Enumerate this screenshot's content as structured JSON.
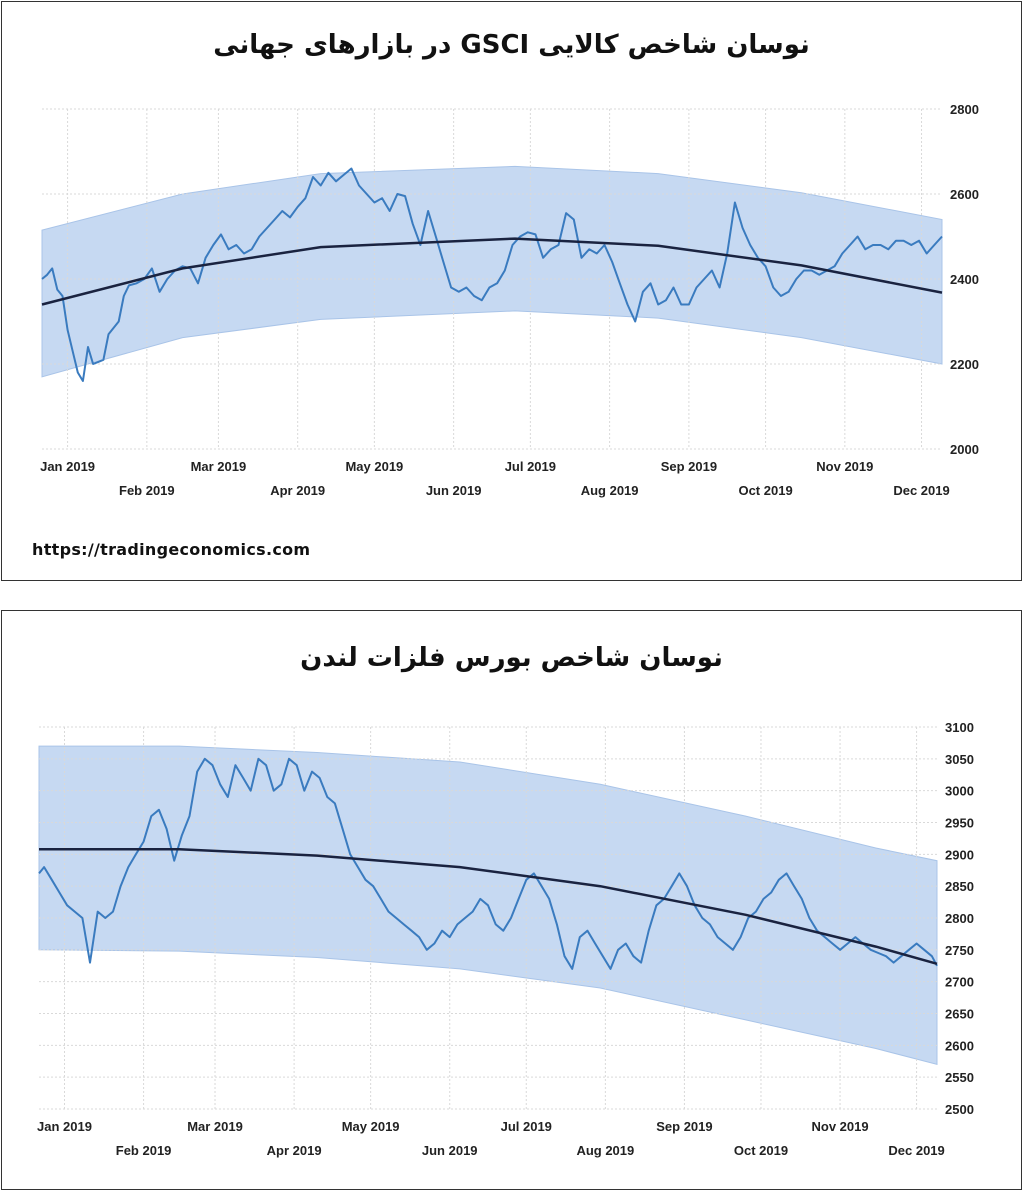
{
  "source": "https://tradingeconomics.com",
  "colors": {
    "band": "#c6d9f2",
    "line": "#3a7bbf",
    "trend": "#1a2340",
    "grid": "#d9d9d9"
  },
  "chart_data": [
    {
      "type": "line",
      "title": "نوسان شاخص کالایی GSCI  در بازارهای جهانی",
      "ylim": [
        2000,
        2800
      ],
      "yticks": [
        2000,
        2200,
        2400,
        2600,
        2800
      ],
      "xlim": [
        "2018-12-22",
        "2019-12-09"
      ],
      "month_ticks": [
        {
          "label": "Jan 2019",
          "date": "2019-01-01",
          "row": 1
        },
        {
          "label": "Feb 2019",
          "date": "2019-02-01",
          "row": 2
        },
        {
          "label": "Mar 2019",
          "date": "2019-03-01",
          "row": 1
        },
        {
          "label": "Apr 2019",
          "date": "2019-04-01",
          "row": 2
        },
        {
          "label": "May 2019",
          "date": "2019-05-01",
          "row": 1
        },
        {
          "label": "Jun 2019",
          "date": "2019-06-01",
          "row": 2
        },
        {
          "label": "Jul 2019",
          "date": "2019-07-01",
          "row": 1
        },
        {
          "label": "Aug 2019",
          "date": "2019-08-01",
          "row": 2
        },
        {
          "label": "Sep 2019",
          "date": "2019-09-01",
          "row": 1
        },
        {
          "label": "Oct 2019",
          "date": "2019-10-01",
          "row": 2
        },
        {
          "label": "Nov 2019",
          "date": "2019-11-01",
          "row": 1
        },
        {
          "label": "Dec 2019",
          "date": "2019-12-01",
          "row": 2
        }
      ],
      "trend": {
        "x": [
          "2018-12-22",
          "2019-02-15",
          "2019-04-10",
          "2019-06-25",
          "2019-08-20",
          "2019-10-15",
          "2019-12-09"
        ],
        "y": [
          2340,
          2425,
          2475,
          2495,
          2478,
          2432,
          2368
        ]
      },
      "band": {
        "x": [
          "2018-12-22",
          "2019-02-15",
          "2019-04-10",
          "2019-06-25",
          "2019-08-20",
          "2019-10-15",
          "2019-12-09"
        ],
        "upper": [
          2515,
          2600,
          2648,
          2665,
          2648,
          2603,
          2540
        ],
        "lower": [
          2170,
          2262,
          2305,
          2325,
          2308,
          2262,
          2200
        ]
      },
      "series": [
        {
          "x": [
            "2018-12-22",
            "2018-12-24",
            "2018-12-26",
            "2018-12-28",
            "2018-12-30",
            "2019-01-01",
            "2019-01-03",
            "2019-01-05",
            "2019-01-07",
            "2019-01-09",
            "2019-01-11",
            "2019-01-13",
            "2019-01-15",
            "2019-01-17",
            "2019-01-19",
            "2019-01-21",
            "2019-01-23",
            "2019-01-25",
            "2019-01-28",
            "2019-01-31",
            "2019-02-03",
            "2019-02-06",
            "2019-02-09",
            "2019-02-12",
            "2019-02-15",
            "2019-02-18",
            "2019-02-21",
            "2019-02-24",
            "2019-02-27",
            "2019-03-02",
            "2019-03-05",
            "2019-03-08",
            "2019-03-11",
            "2019-03-14",
            "2019-03-17",
            "2019-03-20",
            "2019-03-23",
            "2019-03-26",
            "2019-03-29",
            "2019-04-01",
            "2019-04-04",
            "2019-04-07",
            "2019-04-10",
            "2019-04-13",
            "2019-04-16",
            "2019-04-19",
            "2019-04-22",
            "2019-04-25",
            "2019-04-28",
            "2019-05-01",
            "2019-05-04",
            "2019-05-07",
            "2019-05-10",
            "2019-05-13",
            "2019-05-16",
            "2019-05-19",
            "2019-05-22",
            "2019-05-25",
            "2019-05-28",
            "2019-05-31",
            "2019-06-03",
            "2019-06-06",
            "2019-06-09",
            "2019-06-12",
            "2019-06-15",
            "2019-06-18",
            "2019-06-21",
            "2019-06-24",
            "2019-06-27",
            "2019-06-30",
            "2019-07-03",
            "2019-07-06",
            "2019-07-09",
            "2019-07-12",
            "2019-07-15",
            "2019-07-18",
            "2019-07-21",
            "2019-07-24",
            "2019-07-27",
            "2019-07-30",
            "2019-08-02",
            "2019-08-05",
            "2019-08-08",
            "2019-08-11",
            "2019-08-14",
            "2019-08-17",
            "2019-08-20",
            "2019-08-23",
            "2019-08-26",
            "2019-08-29",
            "2019-09-01",
            "2019-09-04",
            "2019-09-07",
            "2019-09-10",
            "2019-09-13",
            "2019-09-16",
            "2019-09-19",
            "2019-09-22",
            "2019-09-25",
            "2019-09-28",
            "2019-10-01",
            "2019-10-04",
            "2019-10-07",
            "2019-10-10",
            "2019-10-13",
            "2019-10-16",
            "2019-10-19",
            "2019-10-22",
            "2019-10-25",
            "2019-10-28",
            "2019-10-31",
            "2019-11-03",
            "2019-11-06",
            "2019-11-09",
            "2019-11-12",
            "2019-11-15",
            "2019-11-18",
            "2019-11-21",
            "2019-11-24",
            "2019-11-27",
            "2019-11-30",
            "2019-12-03",
            "2019-12-06",
            "2019-12-09"
          ],
          "values": [
            2400,
            2410,
            2425,
            2375,
            2360,
            2280,
            2230,
            2180,
            2160,
            2240,
            2200,
            2205,
            2210,
            2270,
            2285,
            2300,
            2360,
            2385,
            2390,
            2400,
            2425,
            2370,
            2400,
            2420,
            2430,
            2425,
            2390,
            2450,
            2480,
            2505,
            2470,
            2480,
            2460,
            2470,
            2500,
            2520,
            2540,
            2560,
            2545,
            2570,
            2590,
            2640,
            2620,
            2650,
            2630,
            2645,
            2660,
            2620,
            2600,
            2580,
            2590,
            2560,
            2600,
            2595,
            2530,
            2480,
            2560,
            2500,
            2440,
            2380,
            2370,
            2380,
            2360,
            2350,
            2380,
            2390,
            2420,
            2480,
            2500,
            2510,
            2505,
            2450,
            2470,
            2480,
            2555,
            2540,
            2450,
            2470,
            2460,
            2480,
            2440,
            2390,
            2340,
            2300,
            2370,
            2390,
            2340,
            2350,
            2380,
            2340,
            2340,
            2380,
            2400,
            2420,
            2380,
            2460,
            2580,
            2520,
            2480,
            2450,
            2430,
            2380,
            2360,
            2370,
            2400,
            2420,
            2420,
            2410,
            2420,
            2430,
            2460,
            2480,
            2500,
            2470,
            2480,
            2480,
            2470,
            2490,
            2490,
            2480,
            2490,
            2460,
            2480,
            2500
          ]
        }
      ]
    },
    {
      "type": "line",
      "title": "نوسان شاخص بورس فلزات لندن",
      "ylim": [
        2500,
        3100
      ],
      "yticks": [
        2500,
        2550,
        2600,
        2650,
        2700,
        2750,
        2800,
        2850,
        2900,
        2950,
        3000,
        3050,
        3100
      ],
      "xlim": [
        "2018-12-22",
        "2019-12-09"
      ],
      "month_ticks": [
        {
          "label": "Jan 2019",
          "date": "2019-01-01",
          "row": 1
        },
        {
          "label": "Feb 2019",
          "date": "2019-02-01",
          "row": 2
        },
        {
          "label": "Mar 2019",
          "date": "2019-03-01",
          "row": 1
        },
        {
          "label": "Apr 2019",
          "date": "2019-04-01",
          "row": 2
        },
        {
          "label": "May 2019",
          "date": "2019-05-01",
          "row": 1
        },
        {
          "label": "Jun 2019",
          "date": "2019-06-01",
          "row": 2
        },
        {
          "label": "Jul 2019",
          "date": "2019-07-01",
          "row": 1
        },
        {
          "label": "Aug 2019",
          "date": "2019-08-01",
          "row": 2
        },
        {
          "label": "Sep 2019",
          "date": "2019-09-01",
          "row": 1
        },
        {
          "label": "Oct 2019",
          "date": "2019-10-01",
          "row": 2
        },
        {
          "label": "Nov 2019",
          "date": "2019-11-01",
          "row": 1
        },
        {
          "label": "Dec 2019",
          "date": "2019-12-01",
          "row": 2
        }
      ],
      "trend": {
        "x": [
          "2018-12-22",
          "2019-02-15",
          "2019-04-10",
          "2019-06-05",
          "2019-07-30",
          "2019-09-25",
          "2019-11-15",
          "2019-12-09"
        ],
        "y": [
          2908,
          2908,
          2898,
          2880,
          2850,
          2805,
          2755,
          2728
        ]
      },
      "band": {
        "x": [
          "2018-12-22",
          "2019-02-15",
          "2019-04-10",
          "2019-06-05",
          "2019-07-30",
          "2019-09-25",
          "2019-11-15",
          "2019-12-09"
        ],
        "upper": [
          3070,
          3070,
          3060,
          3045,
          3010,
          2960,
          2910,
          2890
        ],
        "lower": [
          2750,
          2748,
          2738,
          2720,
          2690,
          2640,
          2595,
          2570
        ]
      },
      "series": [
        {
          "x": [
            "2018-12-22",
            "2018-12-24",
            "2018-12-27",
            "2018-12-30",
            "2019-01-02",
            "2019-01-05",
            "2019-01-08",
            "2019-01-11",
            "2019-01-14",
            "2019-01-17",
            "2019-01-20",
            "2019-01-23",
            "2019-01-26",
            "2019-01-29",
            "2019-02-01",
            "2019-02-04",
            "2019-02-07",
            "2019-02-10",
            "2019-02-13",
            "2019-02-16",
            "2019-02-19",
            "2019-02-22",
            "2019-02-25",
            "2019-02-28",
            "2019-03-03",
            "2019-03-06",
            "2019-03-09",
            "2019-03-12",
            "2019-03-15",
            "2019-03-18",
            "2019-03-21",
            "2019-03-24",
            "2019-03-27",
            "2019-03-30",
            "2019-04-02",
            "2019-04-05",
            "2019-04-08",
            "2019-04-11",
            "2019-04-14",
            "2019-04-17",
            "2019-04-20",
            "2019-04-23",
            "2019-04-26",
            "2019-04-29",
            "2019-05-02",
            "2019-05-05",
            "2019-05-08",
            "2019-05-11",
            "2019-05-14",
            "2019-05-17",
            "2019-05-20",
            "2019-05-23",
            "2019-05-26",
            "2019-05-29",
            "2019-06-01",
            "2019-06-04",
            "2019-06-07",
            "2019-06-10",
            "2019-06-13",
            "2019-06-16",
            "2019-06-19",
            "2019-06-22",
            "2019-06-25",
            "2019-06-28",
            "2019-07-01",
            "2019-07-04",
            "2019-07-07",
            "2019-07-10",
            "2019-07-13",
            "2019-07-16",
            "2019-07-19",
            "2019-07-22",
            "2019-07-25",
            "2019-07-28",
            "2019-07-31",
            "2019-08-03",
            "2019-08-06",
            "2019-08-09",
            "2019-08-12",
            "2019-08-15",
            "2019-08-18",
            "2019-08-21",
            "2019-08-24",
            "2019-08-27",
            "2019-08-30",
            "2019-09-02",
            "2019-09-05",
            "2019-09-08",
            "2019-09-11",
            "2019-09-14",
            "2019-09-17",
            "2019-09-20",
            "2019-09-23",
            "2019-09-26",
            "2019-09-29",
            "2019-10-02",
            "2019-10-05",
            "2019-10-08",
            "2019-10-11",
            "2019-10-14",
            "2019-10-17",
            "2019-10-20",
            "2019-10-23",
            "2019-10-26",
            "2019-10-29",
            "2019-11-01",
            "2019-11-04",
            "2019-11-07",
            "2019-11-10",
            "2019-11-13",
            "2019-11-16",
            "2019-11-19",
            "2019-11-22",
            "2019-11-25",
            "2019-11-28",
            "2019-12-01",
            "2019-12-04",
            "2019-12-07",
            "2019-12-09"
          ],
          "values": [
            2870,
            2880,
            2860,
            2840,
            2820,
            2810,
            2800,
            2730,
            2810,
            2800,
            2810,
            2850,
            2880,
            2900,
            2920,
            2960,
            2970,
            2940,
            2890,
            2930,
            2960,
            3030,
            3050,
            3040,
            3010,
            2990,
            3040,
            3020,
            3000,
            3050,
            3040,
            3000,
            3010,
            3050,
            3040,
            3000,
            3030,
            3020,
            2990,
            2980,
            2940,
            2900,
            2880,
            2860,
            2850,
            2830,
            2810,
            2800,
            2790,
            2780,
            2770,
            2750,
            2760,
            2780,
            2770,
            2790,
            2800,
            2810,
            2830,
            2820,
            2790,
            2780,
            2800,
            2830,
            2860,
            2870,
            2850,
            2830,
            2790,
            2740,
            2720,
            2770,
            2780,
            2760,
            2740,
            2720,
            2750,
            2760,
            2740,
            2730,
            2780,
            2820,
            2830,
            2850,
            2870,
            2850,
            2820,
            2800,
            2790,
            2770,
            2760,
            2750,
            2770,
            2800,
            2810,
            2830,
            2840,
            2860,
            2870,
            2850,
            2830,
            2800,
            2780,
            2770,
            2760,
            2750,
            2760,
            2770,
            2760,
            2750,
            2745,
            2740,
            2730,
            2740,
            2750,
            2760,
            2750,
            2740,
            2725
          ]
        }
      ]
    }
  ]
}
